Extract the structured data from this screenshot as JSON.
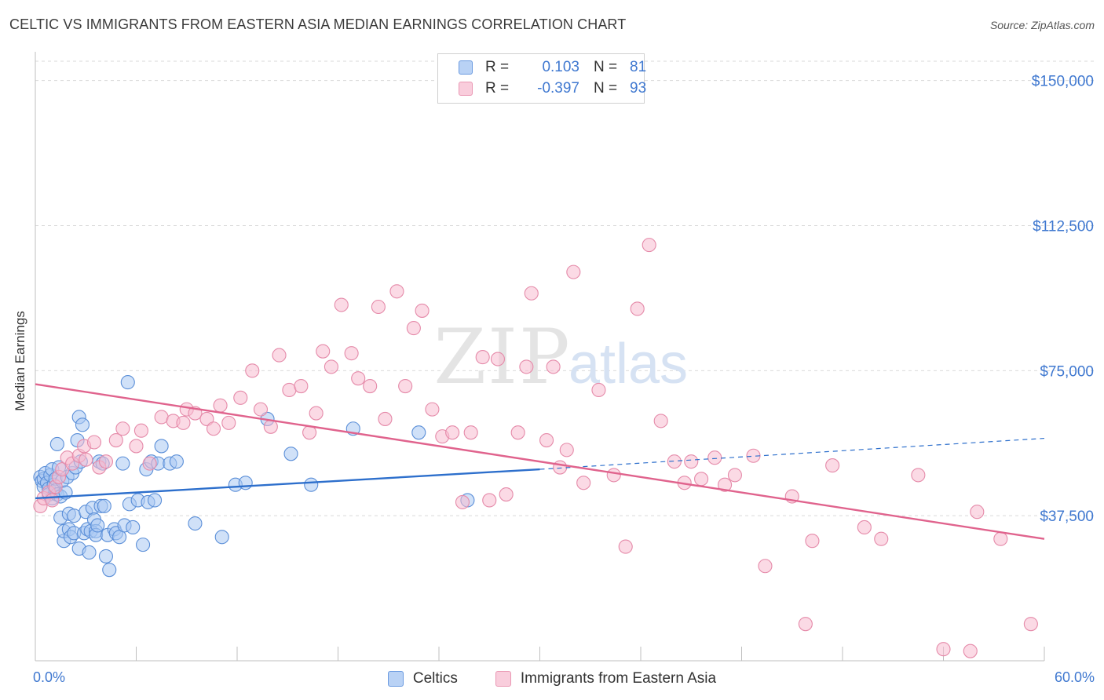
{
  "title": "CELTIC VS IMMIGRANTS FROM EASTERN ASIA MEDIAN EARNINGS CORRELATION CHART",
  "source": "Source: ZipAtlas.com",
  "watermark": {
    "zip": "ZIP",
    "atlas": "atlas"
  },
  "legend": {
    "rows": [
      {
        "r_label": "R =",
        "r_value": "0.103",
        "n_label": "N =",
        "n_value": "81"
      },
      {
        "r_label": "R =",
        "r_value": "-0.397",
        "n_label": "N =",
        "n_value": "93"
      }
    ]
  },
  "x_axis": {
    "min_label": "0.0%",
    "max_label": "60.0%"
  },
  "colors": {
    "blue_fill": "#a9c8f3",
    "blue_stroke": "#5b8fd8",
    "blue_line": "#2d6fcc",
    "pink_fill": "#f7bcd0",
    "pink_stroke": "#e58aa9",
    "pink_line": "#e0638d",
    "tick_label": "#3f78d0",
    "grid": "#d9d9d9"
  },
  "chart_data": {
    "type": "scatter",
    "title": "CELTIC VS IMMIGRANTS FROM EASTERN ASIA MEDIAN EARNINGS CORRELATION CHART",
    "xlabel": "",
    "ylabel": "Median Earnings",
    "xlim": [
      0,
      60
    ],
    "ylim": [
      0,
      155000
    ],
    "y_ticks": [
      37500,
      75000,
      112500,
      150000
    ],
    "y_tick_labels": [
      "$37,500",
      "$75,000",
      "$112,500",
      "$150,000"
    ],
    "grid": true,
    "legend_position": "top-center",
    "series": [
      {
        "name": "Celtics",
        "color": "#5b8fd8",
        "trend": {
          "x": [
            0,
            30
          ],
          "y": [
            42000,
            49500
          ],
          "dashed_extension_to": [
            60,
            57500
          ]
        },
        "points": [
          [
            0.3,
            47500
          ],
          [
            0.4,
            46500
          ],
          [
            0.5,
            45000
          ],
          [
            0.5,
            47000
          ],
          [
            0.6,
            48500
          ],
          [
            0.7,
            46000
          ],
          [
            0.8,
            44500
          ],
          [
            0.8,
            43000
          ],
          [
            0.9,
            48000
          ],
          [
            1.0,
            49500
          ],
          [
            1.0,
            42000
          ],
          [
            1.1,
            45500
          ],
          [
            1.2,
            47000
          ],
          [
            1.2,
            44000
          ],
          [
            1.3,
            43000
          ],
          [
            1.3,
            56000
          ],
          [
            1.4,
            50000
          ],
          [
            1.5,
            42500
          ],
          [
            1.5,
            37000
          ],
          [
            1.6,
            46500
          ],
          [
            1.7,
            31000
          ],
          [
            1.7,
            33500
          ],
          [
            1.8,
            43500
          ],
          [
            1.9,
            47500
          ],
          [
            2.0,
            34000
          ],
          [
            2.0,
            38000
          ],
          [
            2.1,
            32000
          ],
          [
            2.2,
            48500
          ],
          [
            2.3,
            37500
          ],
          [
            2.3,
            33000
          ],
          [
            2.4,
            50000
          ],
          [
            2.5,
            57000
          ],
          [
            2.6,
            63000
          ],
          [
            2.6,
            29000
          ],
          [
            2.7,
            51500
          ],
          [
            2.8,
            61000
          ],
          [
            2.9,
            33000
          ],
          [
            3.0,
            38500
          ],
          [
            3.1,
            34000
          ],
          [
            3.2,
            28000
          ],
          [
            3.3,
            33500
          ],
          [
            3.4,
            39500
          ],
          [
            3.5,
            36500
          ],
          [
            3.6,
            33500
          ],
          [
            3.6,
            32500
          ],
          [
            3.7,
            35000
          ],
          [
            3.8,
            51500
          ],
          [
            3.9,
            40000
          ],
          [
            4.0,
            51000
          ],
          [
            4.1,
            40000
          ],
          [
            4.2,
            27000
          ],
          [
            4.3,
            32500
          ],
          [
            4.4,
            23500
          ],
          [
            4.7,
            34000
          ],
          [
            4.8,
            33000
          ],
          [
            5.0,
            32000
          ],
          [
            5.2,
            51000
          ],
          [
            5.3,
            35000
          ],
          [
            5.5,
            72000
          ],
          [
            5.6,
            40500
          ],
          [
            5.8,
            34500
          ],
          [
            6.1,
            41500
          ],
          [
            6.4,
            30000
          ],
          [
            6.6,
            49500
          ],
          [
            6.7,
            41000
          ],
          [
            6.9,
            51500
          ],
          [
            7.1,
            41500
          ],
          [
            7.3,
            51000
          ],
          [
            7.5,
            55500
          ],
          [
            8.0,
            51000
          ],
          [
            8.4,
            51500
          ],
          [
            9.5,
            35500
          ],
          [
            11.1,
            32000
          ],
          [
            11.9,
            45500
          ],
          [
            12.5,
            46000
          ],
          [
            13.8,
            62500
          ],
          [
            15.2,
            53500
          ],
          [
            16.4,
            45500
          ],
          [
            18.9,
            60000
          ],
          [
            22.8,
            59000
          ],
          [
            25.7,
            41500
          ]
        ]
      },
      {
        "name": "Immigrants from Eastern Asia",
        "color": "#e58aa9",
        "trend": {
          "x": [
            0,
            60
          ],
          "y": [
            71500,
            31500
          ]
        },
        "points": [
          [
            0.3,
            40000
          ],
          [
            0.5,
            42000
          ],
          [
            0.8,
            43500
          ],
          [
            1.0,
            41500
          ],
          [
            1.2,
            45000
          ],
          [
            1.4,
            47500
          ],
          [
            1.6,
            49500
          ],
          [
            1.9,
            52500
          ],
          [
            2.2,
            51000
          ],
          [
            2.6,
            53000
          ],
          [
            2.9,
            55500
          ],
          [
            3.0,
            52000
          ],
          [
            3.5,
            56500
          ],
          [
            3.8,
            50000
          ],
          [
            4.2,
            51500
          ],
          [
            4.8,
            57000
          ],
          [
            5.2,
            60000
          ],
          [
            6.0,
            55500
          ],
          [
            6.3,
            59500
          ],
          [
            6.8,
            51000
          ],
          [
            7.5,
            63000
          ],
          [
            8.2,
            62000
          ],
          [
            8.8,
            61500
          ],
          [
            9.0,
            65000
          ],
          [
            9.5,
            64000
          ],
          [
            10.2,
            62500
          ],
          [
            10.6,
            60000
          ],
          [
            11.0,
            66000
          ],
          [
            11.5,
            61500
          ],
          [
            12.2,
            68000
          ],
          [
            12.9,
            75000
          ],
          [
            13.4,
            65000
          ],
          [
            14.0,
            60500
          ],
          [
            14.5,
            79000
          ],
          [
            15.1,
            70000
          ],
          [
            15.8,
            71000
          ],
          [
            16.3,
            59000
          ],
          [
            16.7,
            64000
          ],
          [
            17.1,
            80000
          ],
          [
            17.6,
            76000
          ],
          [
            18.2,
            92000
          ],
          [
            18.8,
            79500
          ],
          [
            19.2,
            73000
          ],
          [
            19.9,
            71000
          ],
          [
            20.4,
            91500
          ],
          [
            20.8,
            62500
          ],
          [
            21.5,
            95500
          ],
          [
            22.0,
            71000
          ],
          [
            22.5,
            86000
          ],
          [
            23.0,
            90500
          ],
          [
            23.6,
            65000
          ],
          [
            24.2,
            58000
          ],
          [
            24.8,
            59000
          ],
          [
            25.4,
            41000
          ],
          [
            25.9,
            59000
          ],
          [
            26.6,
            78500
          ],
          [
            27.0,
            41500
          ],
          [
            27.5,
            78000
          ],
          [
            28.0,
            43000
          ],
          [
            28.7,
            59000
          ],
          [
            29.2,
            76000
          ],
          [
            29.5,
            95000
          ],
          [
            30.4,
            57000
          ],
          [
            30.8,
            76000
          ],
          [
            31.2,
            50000
          ],
          [
            31.6,
            54500
          ],
          [
            32.0,
            100500
          ],
          [
            32.6,
            46000
          ],
          [
            33.5,
            70000
          ],
          [
            34.4,
            48000
          ],
          [
            35.1,
            29500
          ],
          [
            35.8,
            91000
          ],
          [
            36.5,
            107500
          ],
          [
            37.2,
            62000
          ],
          [
            38.0,
            51500
          ],
          [
            38.6,
            46000
          ],
          [
            39.0,
            51500
          ],
          [
            39.6,
            47000
          ],
          [
            40.4,
            52500
          ],
          [
            41.0,
            45500
          ],
          [
            41.6,
            48000
          ],
          [
            42.7,
            53000
          ],
          [
            43.4,
            24500
          ],
          [
            45.0,
            42500
          ],
          [
            45.8,
            9500
          ],
          [
            46.2,
            31000
          ],
          [
            47.4,
            50500
          ],
          [
            49.3,
            34500
          ],
          [
            50.3,
            31500
          ],
          [
            52.5,
            48000
          ],
          [
            54.0,
            3000
          ],
          [
            56.0,
            38500
          ],
          [
            57.4,
            31500
          ],
          [
            59.2,
            9500
          ],
          [
            55.6,
            2500
          ]
        ]
      }
    ]
  },
  "bottom_legend": {
    "items": [
      "Celtics",
      "Immigrants from Eastern Asia"
    ]
  }
}
